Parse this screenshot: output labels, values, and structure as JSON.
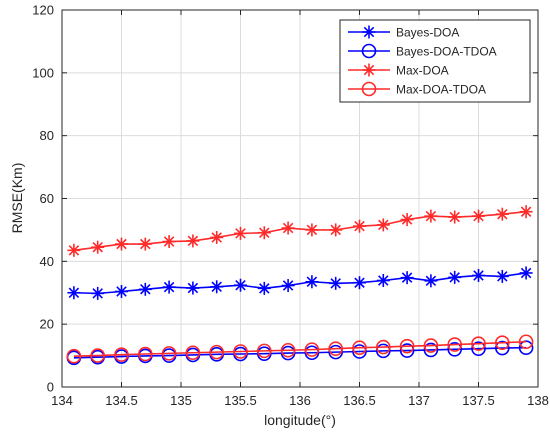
{
  "chart_data": {
    "type": "line",
    "title": "",
    "xlabel": "longitude(°)",
    "ylabel": "RMSE(Km)",
    "xlim": [
      134,
      138
    ],
    "ylim": [
      0,
      120
    ],
    "xticks": [
      134,
      134.5,
      135,
      135.5,
      136,
      136.5,
      137,
      137.5,
      138
    ],
    "xtick_labels": [
      "134",
      "134.5",
      "135",
      "135.5",
      "136",
      "136.5",
      "137",
      "137.5",
      "138"
    ],
    "yticks": [
      0,
      20,
      40,
      60,
      80,
      100,
      120
    ],
    "ytick_labels": [
      "0",
      "20",
      "40",
      "60",
      "80",
      "100",
      "120"
    ],
    "grid": true,
    "legend_position": "top-right",
    "x": [
      134.1,
      134.3,
      134.5,
      134.7,
      134.9,
      135.1,
      135.3,
      135.5,
      135.7,
      135.9,
      136.1,
      136.3,
      136.5,
      136.7,
      136.9,
      137.1,
      137.3,
      137.5,
      137.7,
      137.9
    ],
    "series": [
      {
        "name": "Bayes-DOA",
        "color": "#0000ff",
        "marker": "asterisk",
        "values": [
          30.0,
          29.8,
          30.4,
          31.1,
          31.8,
          31.5,
          31.9,
          32.4,
          31.4,
          32.3,
          33.5,
          33.0,
          33.2,
          33.9,
          34.8,
          33.8,
          34.9,
          35.5,
          35.2,
          36.3
        ]
      },
      {
        "name": "Bayes-DOA-TDOA",
        "color": "#0000ff",
        "marker": "circle",
        "values": [
          9.3,
          9.5,
          9.7,
          9.9,
          10.0,
          10.2,
          10.4,
          10.5,
          10.6,
          10.8,
          10.9,
          11.1,
          11.3,
          11.5,
          11.6,
          11.8,
          12.0,
          12.2,
          12.4,
          12.5
        ]
      },
      {
        "name": "Max-DOA",
        "color": "#ff2a2a",
        "marker": "asterisk",
        "values": [
          43.5,
          44.5,
          45.5,
          45.5,
          46.3,
          46.5,
          47.6,
          48.9,
          49.1,
          50.6,
          50.0,
          50.0,
          51.2,
          51.6,
          53.3,
          54.4,
          54.1,
          54.4,
          55.0,
          55.8
        ]
      },
      {
        "name": "Max-DOA-TDOA",
        "color": "#ff2a2a",
        "marker": "circle",
        "values": [
          9.8,
          10.0,
          10.3,
          10.5,
          10.7,
          10.9,
          11.1,
          11.3,
          11.5,
          11.7,
          11.9,
          12.2,
          12.5,
          12.7,
          13.0,
          13.2,
          13.5,
          13.8,
          14.1,
          14.4
        ]
      }
    ]
  }
}
